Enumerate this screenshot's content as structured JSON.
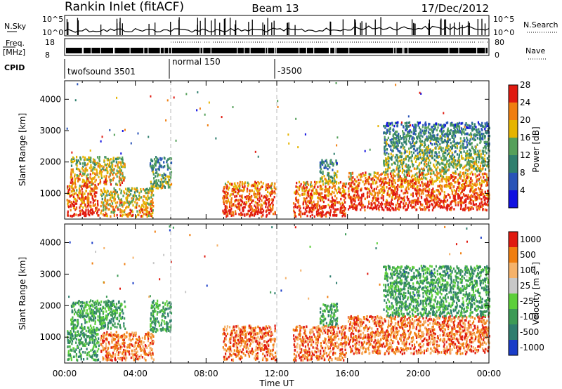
{
  "header": {
    "station": "Rankin Inlet (fitACF)",
    "beam": "Beam 13",
    "date": "17/Dec/2012"
  },
  "top_panels": {
    "nsky_label": "N.Sky",
    "nsearch_label": "N.Search",
    "nsky_scale": [
      "10^5",
      "10^0"
    ],
    "nsky_scale_right": [
      "10^5",
      "10^0"
    ],
    "freq_label": "Freq.",
    "freq_unit": "[MHz]",
    "freq_scale": [
      "18",
      "8"
    ],
    "nave_label": "Nave",
    "nave_scale": [
      "80",
      "0"
    ],
    "cpid_label": "CPID",
    "cpid_segments": [
      {
        "label": "twofsound 3501",
        "start_hour": 0
      },
      {
        "label": "normal 150",
        "start_hour": 6
      },
      {
        "label": "-3500",
        "start_hour": 12
      }
    ]
  },
  "chart_data": [
    {
      "type": "heatmap",
      "title": "",
      "xlabel": "Time UT",
      "ylabel": "Slant Range [km]",
      "x_ticks": [
        "00:00",
        "04:00",
        "08:00",
        "12:00",
        "16:00",
        "20:00",
        "00:00"
      ],
      "x_range_hours": [
        0,
        24
      ],
      "y_ticks": [
        1000,
        2000,
        3000,
        4000
      ],
      "ylim": [
        180,
        4590
      ],
      "colorbar": {
        "label": "Power [dB]",
        "ticks": [
          "4",
          "8",
          "12",
          "16",
          "20",
          "24",
          "28"
        ],
        "colors": [
          "#1010e0",
          "#2a54b8",
          "#2f7f6e",
          "#55a05a",
          "#e6b400",
          "#f07e10",
          "#e01a10"
        ]
      },
      "regions": [
        {
          "hours": [
            0.1,
            1.9
          ],
          "range_km": [
            300,
            1300
          ],
          "level": "high"
        },
        {
          "hours": [
            0.3,
            3.4
          ],
          "range_km": [
            1300,
            2200
          ],
          "level": "medium"
        },
        {
          "hours": [
            2.0,
            5.0
          ],
          "range_km": [
            300,
            1200
          ],
          "level": "medium"
        },
        {
          "hours": [
            4.8,
            6.0
          ],
          "range_km": [
            1200,
            2200
          ],
          "level": "low"
        },
        {
          "hours": [
            8.9,
            11.9
          ],
          "range_km": [
            300,
            1400
          ],
          "level": "high"
        },
        {
          "hours": [
            12.9,
            15.9
          ],
          "range_km": [
            300,
            1400
          ],
          "level": "high"
        },
        {
          "hours": [
            14.4,
            15.4
          ],
          "range_km": [
            1400,
            2100
          ],
          "level": "low"
        },
        {
          "hours": [
            16.0,
            24.0
          ],
          "range_km": [
            500,
            1700
          ],
          "level": "high"
        },
        {
          "hours": [
            18.0,
            24.0
          ],
          "range_km": [
            1700,
            3300
          ],
          "level": "low"
        }
      ]
    },
    {
      "type": "heatmap",
      "title": "",
      "xlabel": "Time UT",
      "ylabel": "Slant Range [km]",
      "x_ticks": [
        "00:00",
        "04:00",
        "08:00",
        "12:00",
        "16:00",
        "20:00",
        "00:00"
      ],
      "x_range_hours": [
        0,
        24
      ],
      "y_ticks": [
        1000,
        2000,
        3000,
        4000
      ],
      "ylim": [
        180,
        4590
      ],
      "colorbar": {
        "label": "Velocity [m s^-1]",
        "label_main": "Velocity  [m s",
        "label_sup": "-1",
        "label_end": "]",
        "ticks": [
          "1000",
          "500",
          "100",
          "25",
          "-25",
          "-100",
          "-500",
          "-1000"
        ],
        "colors": [
          "#1a3cc8",
          "#2e7d6e",
          "#3c9a55",
          "#5ccf3a",
          "#c8c8c8",
          "#f5b26a",
          "#f07e10",
          "#e01a10"
        ]
      },
      "regions": [
        {
          "hours": [
            0.1,
            1.9
          ],
          "range_km": [
            300,
            1300
          ],
          "level": "green"
        },
        {
          "hours": [
            0.3,
            3.4
          ],
          "range_km": [
            1300,
            2200
          ],
          "level": "green"
        },
        {
          "hours": [
            2.0,
            5.0
          ],
          "range_km": [
            300,
            1200
          ],
          "level": "orange"
        },
        {
          "hours": [
            4.8,
            6.0
          ],
          "range_km": [
            1200,
            2200
          ],
          "level": "green"
        },
        {
          "hours": [
            8.9,
            11.9
          ],
          "range_km": [
            300,
            1400
          ],
          "level": "orange"
        },
        {
          "hours": [
            12.9,
            15.9
          ],
          "range_km": [
            300,
            1400
          ],
          "level": "orange"
        },
        {
          "hours": [
            14.4,
            15.4
          ],
          "range_km": [
            1400,
            2100
          ],
          "level": "green"
        },
        {
          "hours": [
            16.0,
            24.0
          ],
          "range_km": [
            500,
            1700
          ],
          "level": "orange"
        },
        {
          "hours": [
            18.0,
            24.0
          ],
          "range_km": [
            1700,
            3300
          ],
          "level": "green"
        }
      ]
    }
  ]
}
